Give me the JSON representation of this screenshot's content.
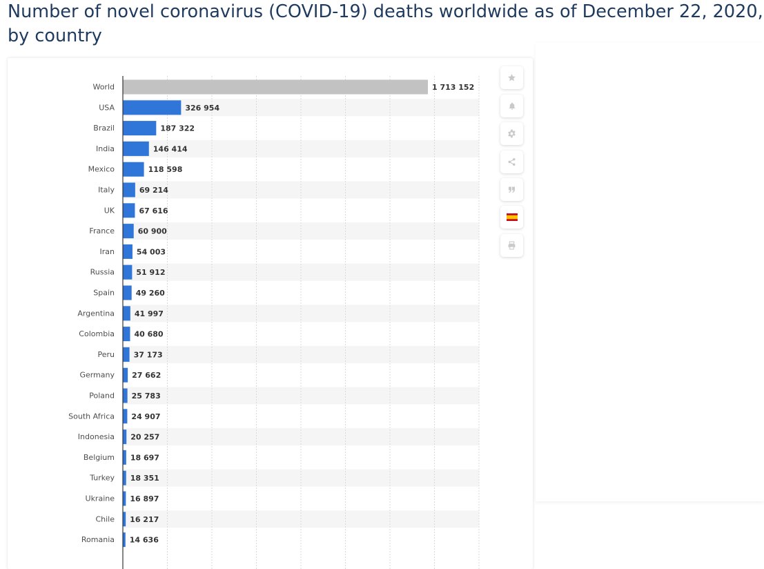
{
  "page": {
    "title": "Number of novel coronavirus (COVID-19) deaths worldwide as of December 22, 2020, by country"
  },
  "toolbar": {
    "buttons": [
      {
        "name": "favorite-button",
        "icon": "star-icon"
      },
      {
        "name": "notification-button",
        "icon": "bell-icon"
      },
      {
        "name": "settings-button",
        "icon": "gear-icon"
      },
      {
        "name": "share-button",
        "icon": "share-icon"
      },
      {
        "name": "cite-button",
        "icon": "quote-icon"
      },
      {
        "name": "language-button",
        "icon": "spain-flag-icon"
      },
      {
        "name": "print-button",
        "icon": "printer-icon"
      }
    ]
  },
  "colors": {
    "bar": "#2f76d8",
    "world_bar": "#c2c2c2",
    "row_band": "#f5f5f5",
    "grid": "#d9d9d9",
    "title": "#1f3a5f"
  },
  "chart_data": {
    "type": "bar",
    "orientation": "horizontal",
    "title": "Number of novel coronavirus (COVID-19) deaths worldwide as of December 22, 2020, by country",
    "xlabel": "",
    "ylabel": "",
    "xlim": [
      0,
      2000000
    ],
    "grid": true,
    "categories": [
      "World",
      "USA",
      "Brazil",
      "India",
      "Mexico",
      "Italy",
      "UK",
      "France",
      "Iran",
      "Russia",
      "Spain",
      "Argentina",
      "Colombia",
      "Peru",
      "Germany",
      "Poland",
      "South Africa",
      "Indonesia",
      "Belgium",
      "Turkey",
      "Ukraine",
      "Chile",
      "Romania"
    ],
    "values": [
      1713152,
      326954,
      187322,
      146414,
      118598,
      69214,
      67616,
      60900,
      54003,
      51912,
      49260,
      41997,
      40680,
      37173,
      27662,
      25783,
      24907,
      20257,
      18697,
      18351,
      16897,
      16217,
      14636
    ],
    "value_labels": [
      "1 713 152",
      "326 954",
      "187 322",
      "146 414",
      "118 598",
      "69 214",
      "67 616",
      "60 900",
      "54 003",
      "51 912",
      "49 260",
      "41 997",
      "40 680",
      "37 173",
      "27 662",
      "25 783",
      "24 907",
      "20 257",
      "18 697",
      "18 351",
      "16 897",
      "16 217",
      "14 636"
    ],
    "highlight_category": "World"
  }
}
